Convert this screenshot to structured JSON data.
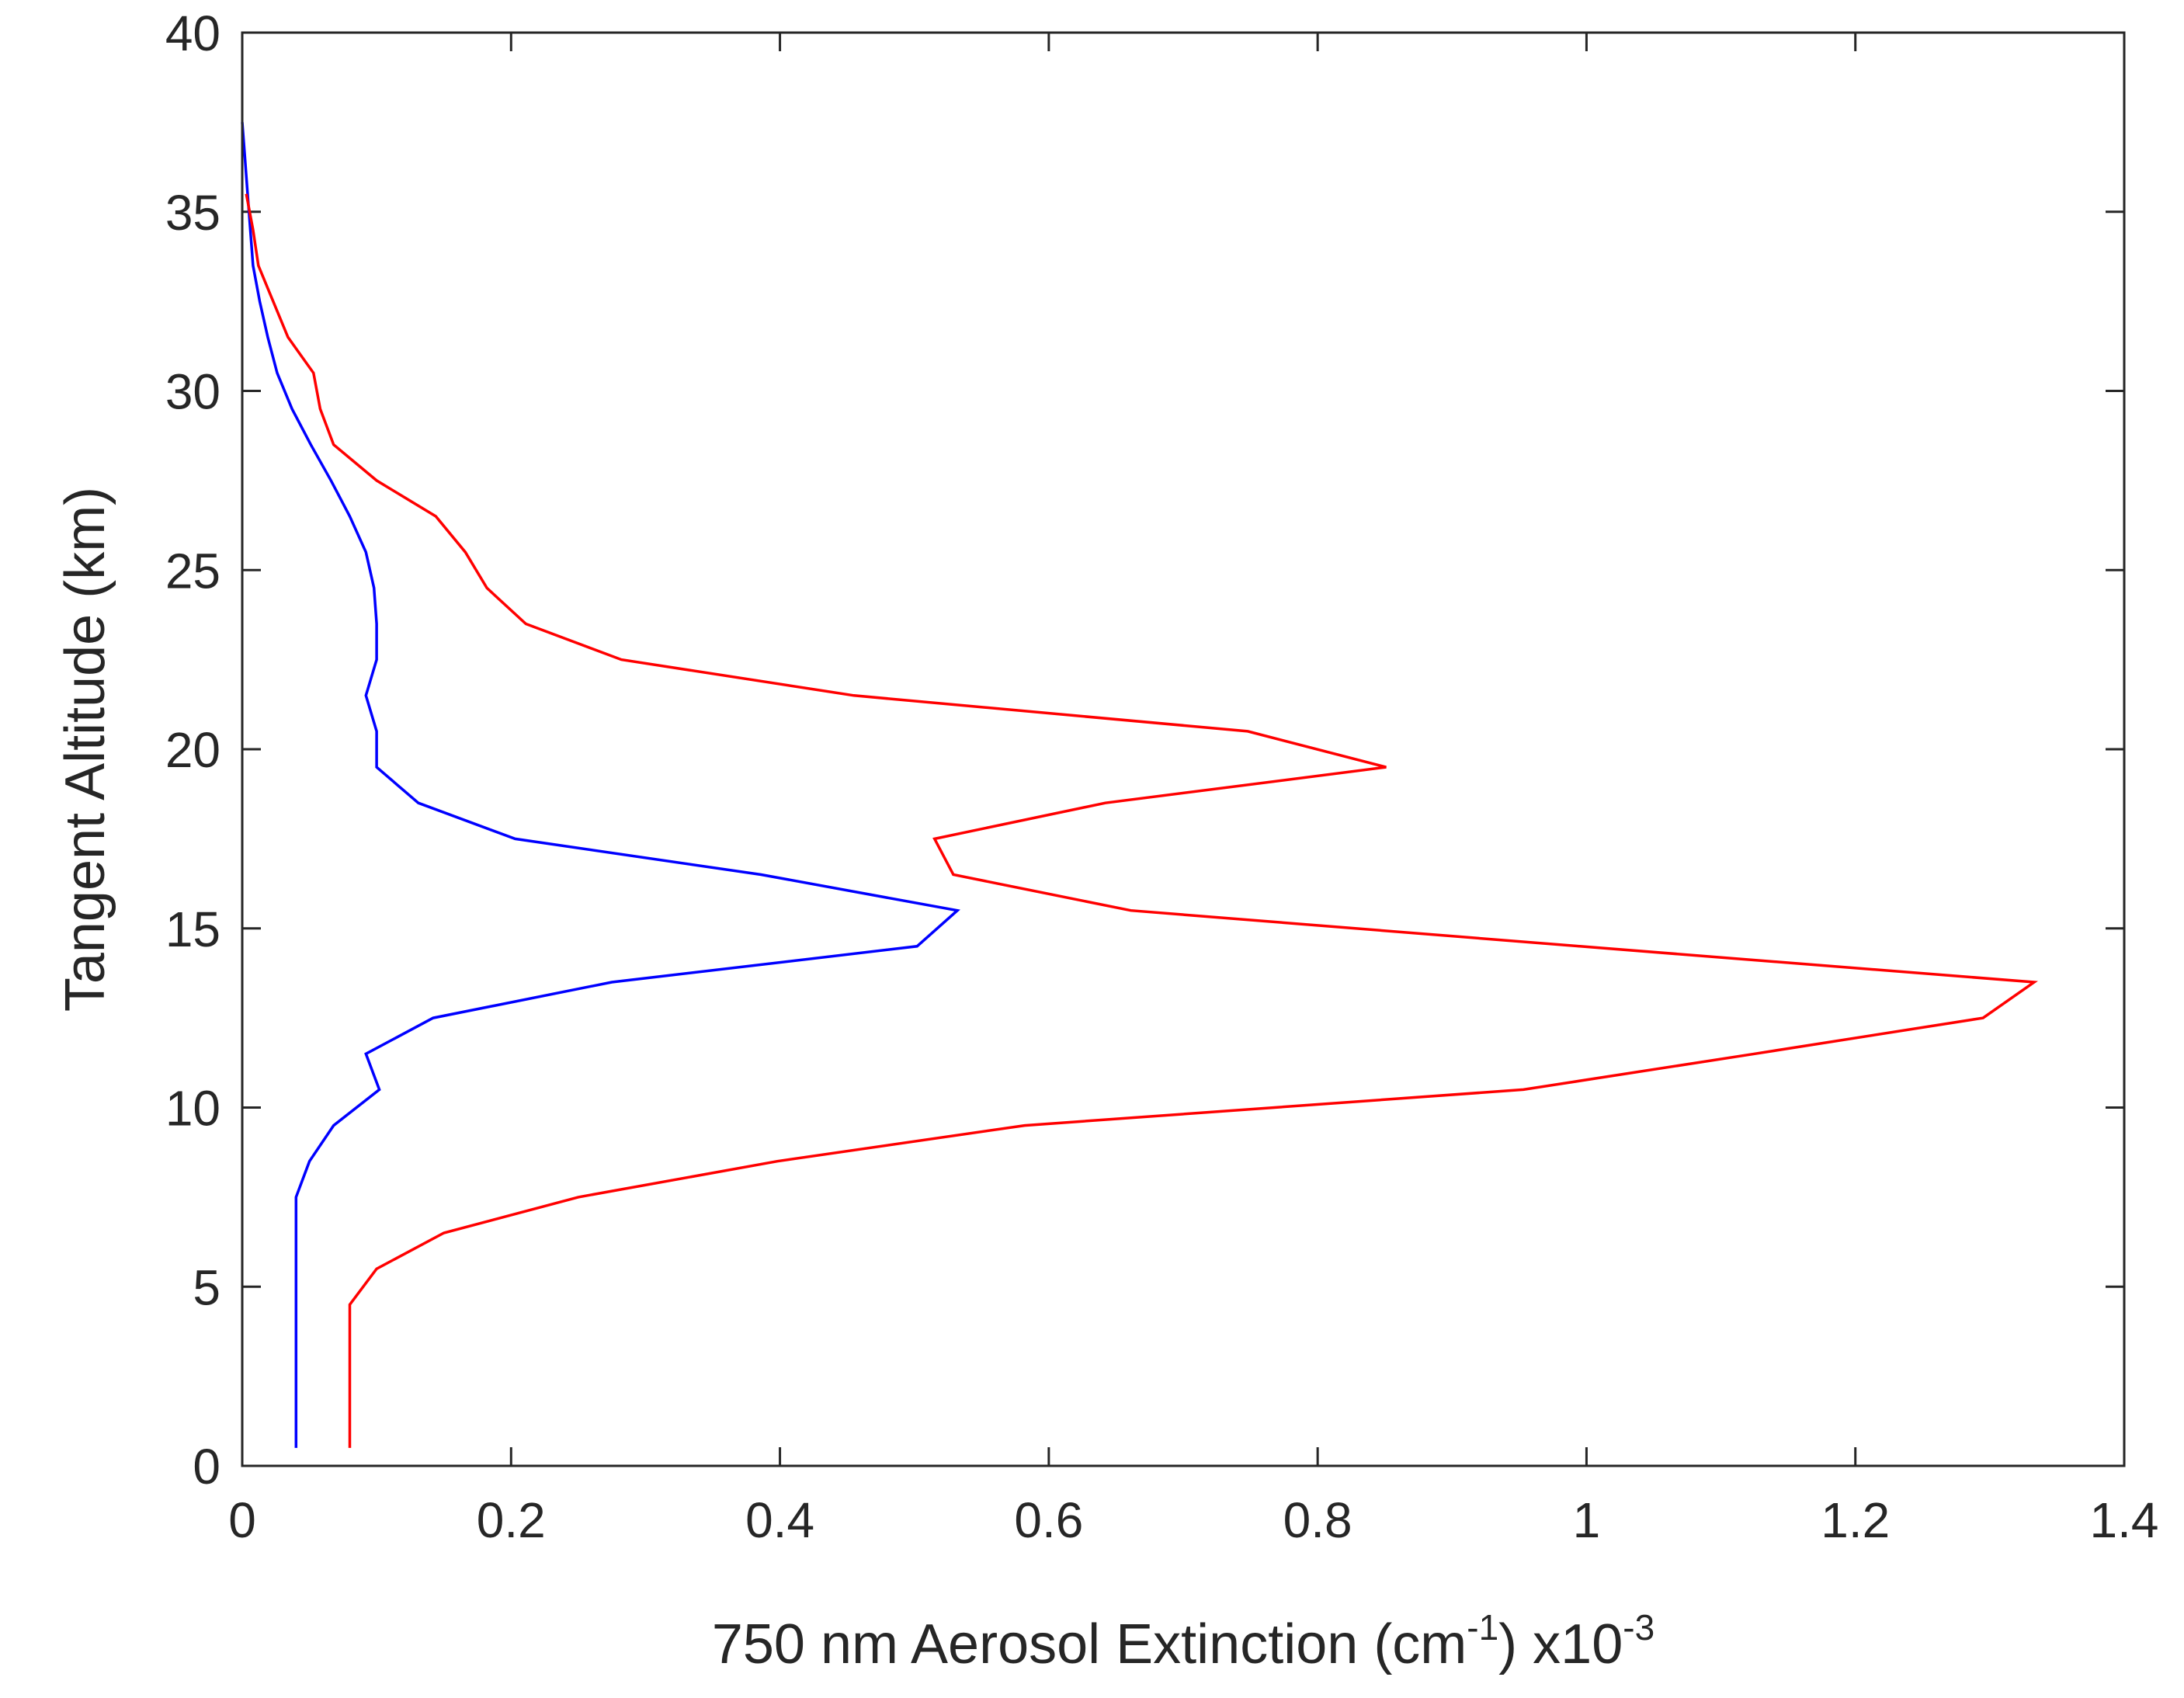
{
  "chart_data": {
    "type": "line",
    "title": "",
    "xlabel": "750 nm Aerosol Extinction (cm-1) x10-3",
    "xlabel_parts": {
      "pre": "750 nm Aerosol Extinction (cm",
      "sup1": "-1",
      "mid": ") x10",
      "sup2": "-3"
    },
    "ylabel": "Tangent Altitude (km)",
    "xlim": [
      0,
      1.4
    ],
    "ylim": [
      0,
      40
    ],
    "xticks": [
      "0",
      "0.2",
      "0.4",
      "0.6",
      "0.8",
      "1",
      "1.2",
      "1.4"
    ],
    "yticks": [
      "0",
      "5",
      "10",
      "15",
      "20",
      "25",
      "30",
      "35",
      "40"
    ],
    "grid": false,
    "legend": "none",
    "series": [
      {
        "color": "#0000ff",
        "points": [
          [
            0.04,
            0.5
          ],
          [
            0.04,
            1.5
          ],
          [
            0.04,
            2.5
          ],
          [
            0.04,
            3.5
          ],
          [
            0.04,
            4.5
          ],
          [
            0.04,
            5.5
          ],
          [
            0.04,
            6.5
          ],
          [
            0.04,
            7.5
          ],
          [
            0.05,
            8.5
          ],
          [
            0.068,
            9.5
          ],
          [
            0.102,
            10.5
          ],
          [
            0.092,
            11.5
          ],
          [
            0.142,
            12.5
          ],
          [
            0.275,
            13.5
          ],
          [
            0.502,
            14.5
          ],
          [
            0.532,
            15.5
          ],
          [
            0.386,
            16.5
          ],
          [
            0.203,
            17.5
          ],
          [
            0.131,
            18.5
          ],
          [
            0.1,
            19.5
          ],
          [
            0.1,
            20.5
          ],
          [
            0.092,
            21.5
          ],
          [
            0.1,
            22.5
          ],
          [
            0.1,
            23.5
          ],
          [
            0.098,
            24.5
          ],
          [
            0.092,
            25.5
          ],
          [
            0.08,
            26.5
          ],
          [
            0.066,
            27.5
          ],
          [
            0.051,
            28.5
          ],
          [
            0.037,
            29.5
          ],
          [
            0.026,
            30.5
          ],
          [
            0.019,
            31.5
          ],
          [
            0.013,
            32.5
          ],
          [
            0.008,
            33.5
          ],
          [
            0.006,
            34.5
          ],
          [
            0.004,
            35.5
          ],
          [
            0.002,
            36.5
          ],
          [
            0.0,
            37.5
          ]
        ]
      },
      {
        "color": "#ff0000",
        "points": [
          [
            0.08,
            0.5
          ],
          [
            0.08,
            1.5
          ],
          [
            0.08,
            2.5
          ],
          [
            0.08,
            3.5
          ],
          [
            0.08,
            4.5
          ],
          [
            0.1,
            5.5
          ],
          [
            0.15,
            6.5
          ],
          [
            0.25,
            7.5
          ],
          [
            0.398,
            8.5
          ],
          [
            0.582,
            9.5
          ],
          [
            0.953,
            10.5
          ],
          [
            1.125,
            11.5
          ],
          [
            1.295,
            12.5
          ],
          [
            1.333,
            13.5
          ],
          [
            0.995,
            14.5
          ],
          [
            0.661,
            15.5
          ],
          [
            0.529,
            16.5
          ],
          [
            0.515,
            17.5
          ],
          [
            0.642,
            18.5
          ],
          [
            0.851,
            19.5
          ],
          [
            0.748,
            20.5
          ],
          [
            0.455,
            21.5
          ],
          [
            0.282,
            22.5
          ],
          [
            0.211,
            23.5
          ],
          [
            0.182,
            24.5
          ],
          [
            0.166,
            25.5
          ],
          [
            0.144,
            26.5
          ],
          [
            0.1,
            27.5
          ],
          [
            0.068,
            28.5
          ],
          [
            0.058,
            29.5
          ],
          [
            0.053,
            30.5
          ],
          [
            0.034,
            31.5
          ],
          [
            0.023,
            32.5
          ],
          [
            0.012,
            33.5
          ],
          [
            0.008,
            34.5
          ],
          [
            0.003,
            35.5
          ]
        ]
      }
    ]
  }
}
